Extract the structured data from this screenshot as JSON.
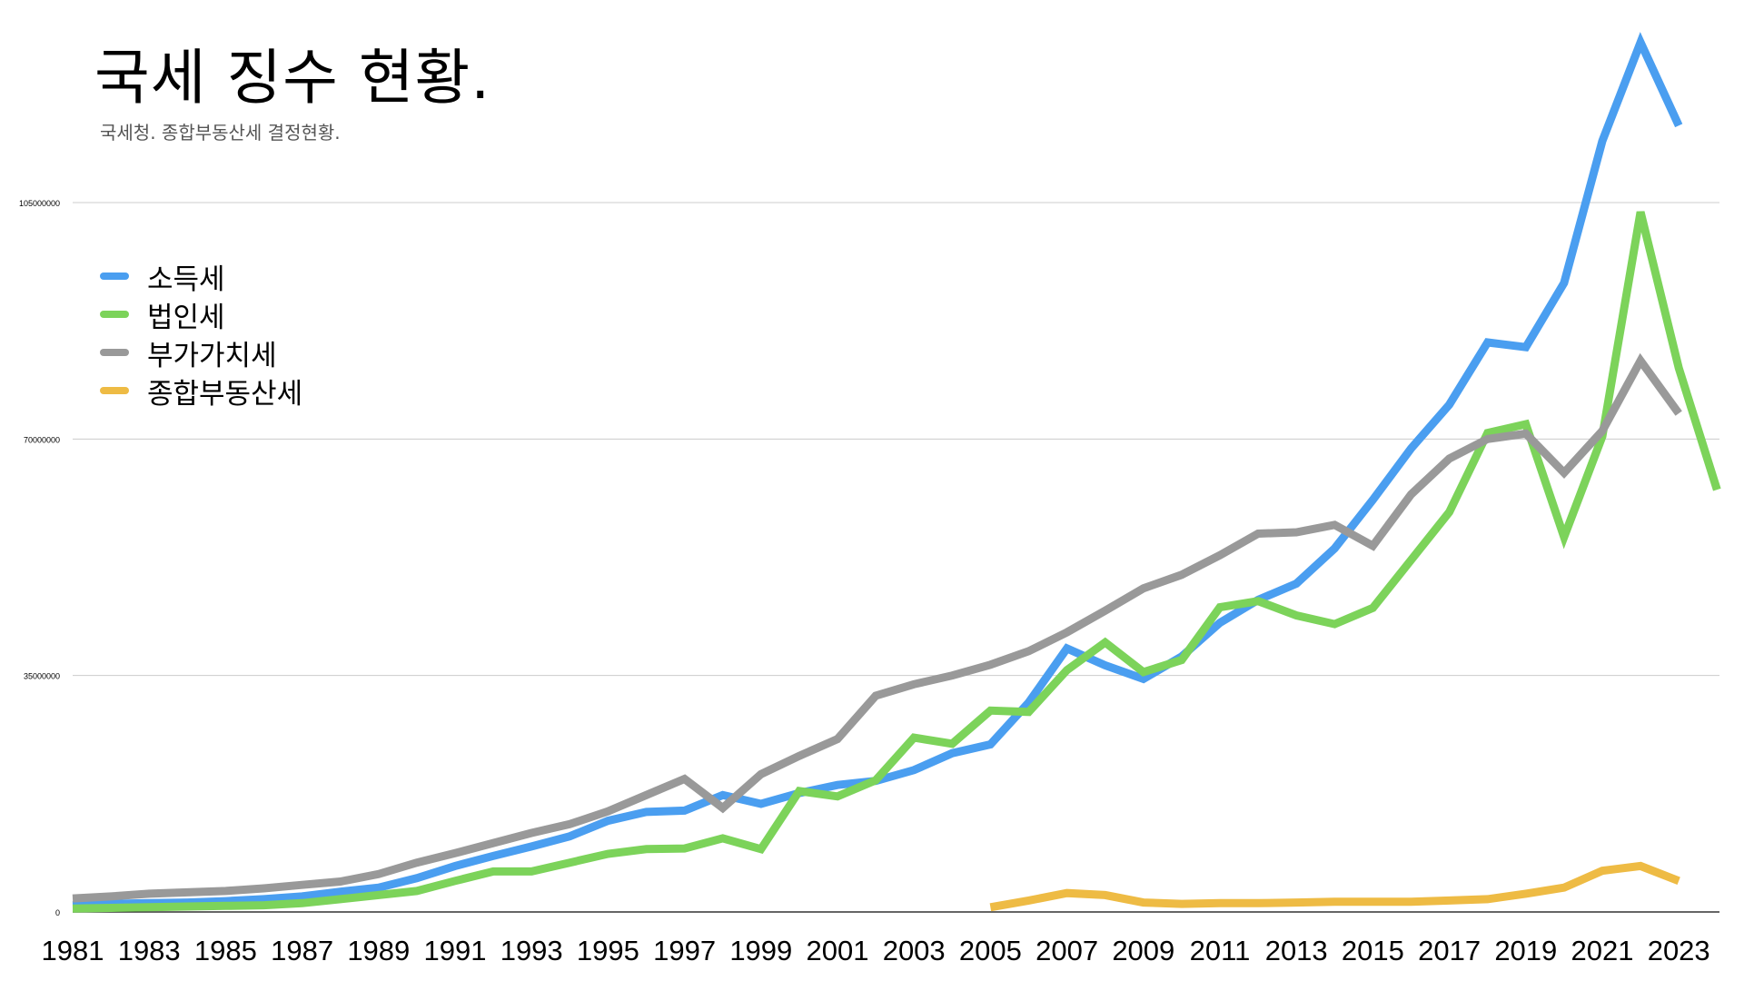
{
  "chart_data": {
    "type": "line",
    "title": "국세 징수 현황.",
    "subtitle": "국세청. 종합부동산세 결정현황.",
    "xlabel": "",
    "ylabel": "",
    "ylim": [
      0,
      105000000
    ],
    "xlim": [
      1981,
      2024
    ],
    "y_ticks": [
      0,
      35000000,
      70000000,
      105000000
    ],
    "y_tick_labels": [
      "0",
      "35000000",
      "70000000",
      "105000000"
    ],
    "x_tick_labels": [
      "1981",
      "1983",
      "1985",
      "1987",
      "1989",
      "1991",
      "1993",
      "1995",
      "1997",
      "1999",
      "2001",
      "2003",
      "2005",
      "2007",
      "2009",
      "2011",
      "2013",
      "2015",
      "2017",
      "2019",
      "2021",
      "2023"
    ],
    "grid": true,
    "legend_position": "top-left",
    "series": [
      {
        "name": "소득세",
        "color": "#4a9ef0",
        "x": [
          1981,
          1982,
          1983,
          1984,
          1985,
          1986,
          1987,
          1988,
          1989,
          1990,
          1991,
          1992,
          1993,
          1994,
          1995,
          1996,
          1997,
          1998,
          1999,
          2000,
          2001,
          2002,
          2003,
          2004,
          2005,
          2006,
          2007,
          2008,
          2009,
          2010,
          2011,
          2012,
          2013,
          2014,
          2015,
          2016,
          2017,
          2018,
          2019,
          2020,
          2021,
          2022,
          2023
        ],
        "values": [
          1000000,
          1200000,
          1300000,
          1400000,
          1600000,
          1900000,
          2300000,
          3000000,
          3600000,
          5000000,
          6800000,
          8300000,
          9700000,
          11200000,
          13500000,
          14800000,
          15000000,
          17300000,
          16000000,
          17600000,
          18800000,
          19400000,
          21000000,
          23500000,
          24800000,
          31000000,
          39000000,
          36500000,
          34500000,
          37800000,
          42800000,
          46200000,
          48600000,
          53800000,
          61000000,
          68600000,
          75100000,
          84300000,
          83600000,
          93100000,
          114100000,
          128700000,
          116400000
        ]
      },
      {
        "name": "법인세",
        "color": "#7cd35a",
        "x": [
          1981,
          1982,
          1983,
          1984,
          1985,
          1986,
          1987,
          1988,
          1989,
          1990,
          1991,
          1992,
          1993,
          1994,
          1995,
          1996,
          1997,
          1998,
          1999,
          2000,
          2001,
          2002,
          2003,
          2004,
          2005,
          2006,
          2007,
          2008,
          2009,
          2010,
          2011,
          2012,
          2013,
          2014,
          2015,
          2016,
          2017,
          2018,
          2019,
          2020,
          2021,
          2022,
          2023,
          2024
        ],
        "values": [
          500000,
          600000,
          700000,
          800000,
          900000,
          1000000,
          1300000,
          1900000,
          2500000,
          3100000,
          4600000,
          6000000,
          6000000,
          7300000,
          8600000,
          9300000,
          9400000,
          10900000,
          9300000,
          17900000,
          17100000,
          19500000,
          25800000,
          24900000,
          29800000,
          29600000,
          35800000,
          39900000,
          35500000,
          37300000,
          45100000,
          46000000,
          43900000,
          42600000,
          45000000,
          52100000,
          59200000,
          70900000,
          72200000,
          55500000,
          70400000,
          103600000,
          80500000,
          62500000
        ]
      },
      {
        "name": "부가가치세",
        "color": "#999999",
        "x": [
          1981,
          1982,
          1983,
          1984,
          1985,
          1986,
          1987,
          1988,
          1989,
          1990,
          1991,
          1992,
          1993,
          1994,
          1995,
          1996,
          1997,
          1998,
          1999,
          2000,
          2001,
          2002,
          2003,
          2004,
          2005,
          2006,
          2007,
          2008,
          2009,
          2010,
          2011,
          2012,
          2013,
          2014,
          2015,
          2016,
          2017,
          2018,
          2019,
          2020,
          2021,
          2022,
          2023
        ],
        "values": [
          2000000,
          2300000,
          2700000,
          2900000,
          3100000,
          3500000,
          4000000,
          4500000,
          5600000,
          7300000,
          8700000,
          10200000,
          11700000,
          13000000,
          14900000,
          17300000,
          19700000,
          15400000,
          20400000,
          23100000,
          25600000,
          32000000,
          33700000,
          35000000,
          36600000,
          38600000,
          41400000,
          44600000,
          47900000,
          49900000,
          52800000,
          56000000,
          56200000,
          57300000,
          54200000,
          61800000,
          67100000,
          70000000,
          70800000,
          65000000,
          71200000,
          81600000,
          73800000
        ]
      },
      {
        "name": "종합부동산세",
        "color": "#eebb44",
        "x": [
          2005,
          2006,
          2007,
          2008,
          2009,
          2010,
          2011,
          2012,
          2013,
          2014,
          2015,
          2016,
          2017,
          2018,
          2019,
          2020,
          2021,
          2022,
          2023
        ],
        "values": [
          700000,
          1700000,
          2800000,
          2500000,
          1400000,
          1200000,
          1300000,
          1300000,
          1400000,
          1500000,
          1500000,
          1500000,
          1700000,
          1900000,
          2700000,
          3600000,
          6100000,
          6800000,
          4600000
        ]
      }
    ]
  }
}
